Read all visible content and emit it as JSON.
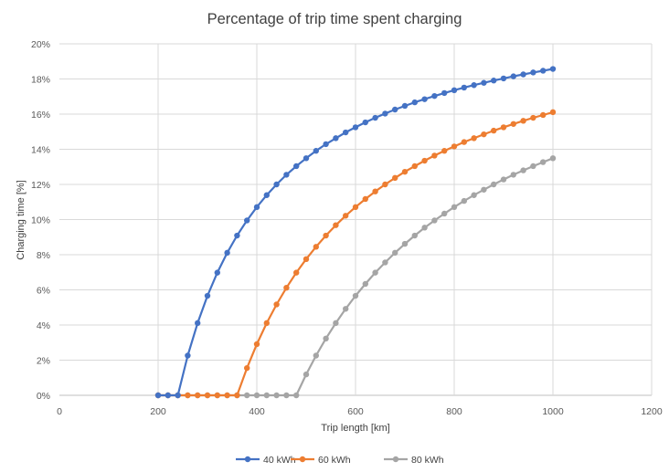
{
  "chart_data": {
    "type": "line",
    "title": "Percentage of trip time spent charging",
    "xlabel": "Trip length [km]",
    "ylabel": "Charging time [%]",
    "xlim": [
      0,
      1200
    ],
    "ylim": [
      0,
      20
    ],
    "x_ticks": [
      "0",
      "200",
      "400",
      "600",
      "800",
      "1000",
      "1200"
    ],
    "y_ticks": [
      "0%",
      "2%",
      "4%",
      "6%",
      "8%",
      "10%",
      "12%",
      "14%",
      "16%",
      "18%",
      "20%"
    ],
    "grid": true,
    "legend_position": "bottom",
    "markers": true,
    "x": [
      200,
      220,
      240,
      260,
      280,
      300,
      320,
      340,
      360,
      380,
      400,
      420,
      440,
      460,
      480,
      500,
      520,
      540,
      560,
      580,
      600,
      620,
      640,
      660,
      680,
      700,
      720,
      740,
      760,
      780,
      800,
      820,
      840,
      860,
      880,
      900,
      920,
      940,
      960,
      980,
      1000
    ],
    "series": [
      {
        "name": "40 kWh",
        "color": "#4472C4",
        "values": [
          0,
          0,
          0,
          2.26,
          4.11,
          5.66,
          6.98,
          8.11,
          9.09,
          9.95,
          10.71,
          11.39,
          12.0,
          12.55,
          13.04,
          13.49,
          13.91,
          14.29,
          14.63,
          14.96,
          15.25,
          15.53,
          15.79,
          16.03,
          16.26,
          16.47,
          16.67,
          16.85,
          17.03,
          17.2,
          17.36,
          17.51,
          17.65,
          17.78,
          17.91,
          18.03,
          18.15,
          18.26,
          18.37,
          18.47,
          18.57
        ]
      },
      {
        "name": "60 kWh",
        "color": "#ED7D31",
        "values": [
          0,
          0,
          0,
          0,
          0,
          0,
          0,
          0,
          0,
          1.55,
          2.91,
          4.11,
          5.17,
          6.12,
          6.98,
          7.75,
          8.45,
          9.09,
          9.68,
          10.22,
          10.71,
          11.17,
          11.6,
          12.0,
          12.37,
          12.72,
          13.04,
          13.35,
          13.64,
          13.91,
          14.16,
          14.41,
          14.63,
          14.85,
          15.06,
          15.25,
          15.44,
          15.62,
          15.79,
          15.95,
          16.11
        ]
      },
      {
        "name": "80 kWh",
        "color": "#A5A5A5",
        "values": [
          0,
          0,
          0,
          0,
          0,
          0,
          0,
          0,
          0,
          0,
          0,
          0,
          0,
          0,
          0,
          1.19,
          2.26,
          3.23,
          4.11,
          4.92,
          5.66,
          6.34,
          6.98,
          7.56,
          8.11,
          8.62,
          9.09,
          9.54,
          9.95,
          10.34,
          10.71,
          11.06,
          11.39,
          11.7,
          12.0,
          12.28,
          12.55,
          12.8,
          13.04,
          13.27,
          13.49
        ]
      }
    ]
  }
}
